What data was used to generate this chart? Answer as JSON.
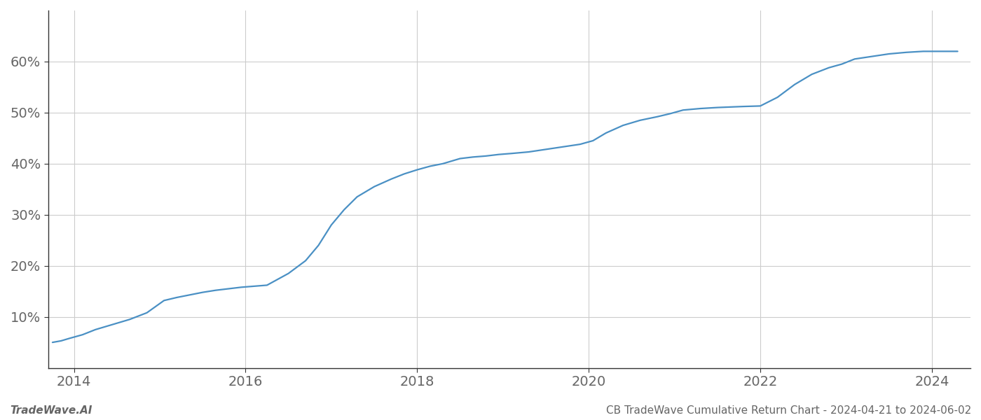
{
  "title": "",
  "footer_left": "TradeWave.AI",
  "footer_right": "CB TradeWave Cumulative Return Chart - 2024-04-21 to 2024-06-02",
  "line_color": "#4a90c4",
  "line_width": 1.6,
  "background_color": "#ffffff",
  "grid_color": "#cccccc",
  "x_years": [
    2013.75,
    2013.85,
    2013.95,
    2014.1,
    2014.25,
    2014.45,
    2014.65,
    2014.85,
    2015.05,
    2015.2,
    2015.35,
    2015.5,
    2015.65,
    2015.8,
    2015.95,
    2016.1,
    2016.25,
    2016.5,
    2016.7,
    2016.85,
    2017.0,
    2017.15,
    2017.3,
    2017.5,
    2017.7,
    2017.85,
    2018.0,
    2018.15,
    2018.3,
    2018.5,
    2018.65,
    2018.8,
    2018.95,
    2019.1,
    2019.3,
    2019.5,
    2019.7,
    2019.9,
    2020.05,
    2020.2,
    2020.4,
    2020.6,
    2020.8,
    2020.95,
    2021.1,
    2021.3,
    2021.5,
    2021.65,
    2021.8,
    2022.0,
    2022.2,
    2022.4,
    2022.6,
    2022.8,
    2022.95,
    2023.1,
    2023.3,
    2023.5,
    2023.7,
    2023.9,
    2024.1,
    2024.3
  ],
  "y_values": [
    5.0,
    5.3,
    5.8,
    6.5,
    7.5,
    8.5,
    9.5,
    10.8,
    13.2,
    13.8,
    14.3,
    14.8,
    15.2,
    15.5,
    15.8,
    16.0,
    16.2,
    18.5,
    21.0,
    24.0,
    28.0,
    31.0,
    33.5,
    35.5,
    37.0,
    38.0,
    38.8,
    39.5,
    40.0,
    41.0,
    41.3,
    41.5,
    41.8,
    42.0,
    42.3,
    42.8,
    43.3,
    43.8,
    44.5,
    46.0,
    47.5,
    48.5,
    49.2,
    49.8,
    50.5,
    50.8,
    51.0,
    51.1,
    51.2,
    51.3,
    53.0,
    55.5,
    57.5,
    58.8,
    59.5,
    60.5,
    61.0,
    61.5,
    61.8,
    62.0,
    62.0,
    62.0
  ],
  "xlim": [
    2013.7,
    2024.45
  ],
  "ylim": [
    0,
    70
  ],
  "yticks": [
    10,
    20,
    30,
    40,
    50,
    60
  ],
  "xticks": [
    2014,
    2016,
    2018,
    2020,
    2022,
    2024
  ],
  "tick_fontsize": 14,
  "footer_fontsize": 11,
  "spine_color": "#333333",
  "tick_color": "#666666",
  "grid_linewidth": 0.8
}
